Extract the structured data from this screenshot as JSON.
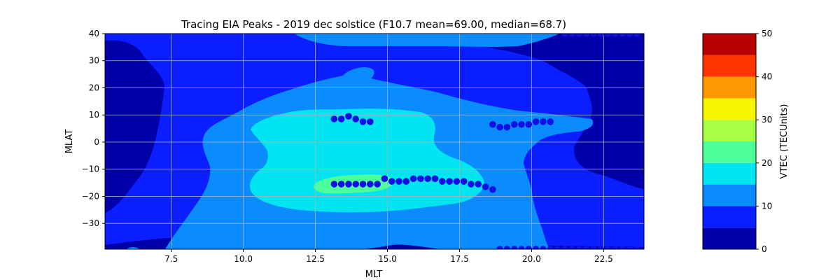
{
  "chart_data": {
    "type": "contour",
    "title": "Tracing EIA Peaks - 2019 dec solstice (F10.7 mean=69.00, median=68.7)",
    "xlabel": "MLT",
    "ylabel": "MLAT",
    "xlim": [
      5.2,
      23.9
    ],
    "ylim": [
      -39.5,
      40
    ],
    "x_ticks": [
      7.5,
      10.0,
      12.5,
      15.0,
      17.5,
      20.0,
      22.5
    ],
    "x_tick_labels": [
      "7.5",
      "10.0",
      "12.5",
      "15.0",
      "17.5",
      "20.0",
      "22.5"
    ],
    "y_ticks": [
      40,
      30,
      20,
      10,
      0,
      -10,
      -20,
      -30
    ],
    "y_tick_labels": [
      "40",
      "30",
      "20",
      "10",
      "0",
      "−10",
      "−20",
      "−30"
    ],
    "grid": true,
    "colorbar": {
      "label": "VTEC (TECUnits)",
      "levels": [
        0,
        5,
        10,
        15,
        20,
        25,
        30,
        35,
        40,
        45,
        50
      ],
      "tick_values": [
        0,
        10,
        20,
        30,
        40,
        50
      ],
      "tick_labels": [
        "0",
        "10",
        "20",
        "30",
        "40",
        "50"
      ],
      "colors": [
        "#0000aa",
        "#0a1eff",
        "#0a8cff",
        "#00e5f0",
        "#4dff9a",
        "#a8ff45",
        "#f5f500",
        "#ff9800",
        "#ff3300",
        "#b80000"
      ]
    },
    "contour_regions": [
      {
        "level": "5-10",
        "color": "#0a1eff",
        "description": "background band covering most of the map"
      },
      {
        "level": "10-15",
        "color": "#0a8cff",
        "description": "broad region 7-22 MLT, -35 to 35 MLAT"
      },
      {
        "level": "15-20",
        "color": "#00e5f0",
        "description": "core region 12-18.5 MLT, -25 to 12 MLAT"
      },
      {
        "level": "20-25",
        "color": "#4dff9a",
        "description": "small patch near 13.5 MLT, -16 MLAT"
      },
      {
        "level": "0-5",
        "color": "#0000aa",
        "description": "low-TEC lobes at early and late MLT"
      }
    ],
    "series": [
      {
        "marker_color": "#1010e6",
        "points": [
          [
            13.15,
            8.5
          ],
          [
            13.4,
            8.5
          ],
          [
            13.65,
            9.5
          ],
          [
            13.9,
            8.5
          ],
          [
            14.15,
            7.5
          ],
          [
            14.4,
            7.5
          ],
          [
            18.65,
            6.5
          ],
          [
            18.9,
            5.5
          ],
          [
            19.15,
            5.5
          ],
          [
            19.4,
            6.5
          ],
          [
            19.65,
            6.5
          ],
          [
            19.9,
            6.5
          ],
          [
            20.15,
            7.5
          ],
          [
            20.4,
            7.5
          ],
          [
            20.65,
            7.5
          ],
          [
            13.15,
            -15.5
          ],
          [
            13.4,
            -15.5
          ],
          [
            13.65,
            -15.5
          ],
          [
            13.9,
            -15.5
          ],
          [
            14.15,
            -15.5
          ],
          [
            14.4,
            -15.5
          ],
          [
            14.65,
            -15.5
          ],
          [
            14.9,
            -13.5
          ],
          [
            15.15,
            -14.5
          ],
          [
            15.4,
            -14.5
          ],
          [
            15.65,
            -14.5
          ],
          [
            15.9,
            -13.5
          ],
          [
            16.15,
            -13.5
          ],
          [
            16.4,
            -13.5
          ],
          [
            16.65,
            -13.5
          ],
          [
            16.9,
            -14.5
          ],
          [
            17.15,
            -14.5
          ],
          [
            17.4,
            -14.5
          ],
          [
            17.65,
            -14.5
          ],
          [
            17.9,
            -15.5
          ],
          [
            18.15,
            -15.5
          ],
          [
            18.4,
            -16.5
          ],
          [
            18.65,
            -17.5
          ],
          [
            18.9,
            -39.5
          ],
          [
            19.15,
            -39.5
          ],
          [
            19.4,
            -39.5
          ],
          [
            19.65,
            -39.5
          ],
          [
            19.9,
            -39.5
          ],
          [
            20.15,
            -39.5
          ],
          [
            20.4,
            -39.5
          ],
          [
            20.65,
            -39.5
          ],
          [
            20.9,
            -39.5
          ],
          [
            21.15,
            -39.5
          ],
          [
            21.4,
            -39.5
          ],
          [
            21.65,
            -39.5
          ],
          [
            21.9,
            -39.5
          ],
          [
            22.15,
            -39.5
          ],
          [
            22.4,
            -39.5
          ],
          [
            22.65,
            -39.5
          ],
          [
            22.9,
            -39.5
          ],
          [
            23.15,
            -39.5
          ],
          [
            23.4,
            -39.5
          ],
          [
            23.65,
            -39.5
          ],
          [
            21.15,
            40
          ],
          [
            21.4,
            40
          ],
          [
            21.65,
            40
          ],
          [
            21.9,
            40
          ],
          [
            22.15,
            40
          ],
          [
            22.4,
            40
          ],
          [
            22.65,
            40
          ],
          [
            22.9,
            40
          ],
          [
            23.15,
            40
          ],
          [
            23.4,
            40
          ],
          [
            23.65,
            40
          ]
        ]
      }
    ]
  }
}
